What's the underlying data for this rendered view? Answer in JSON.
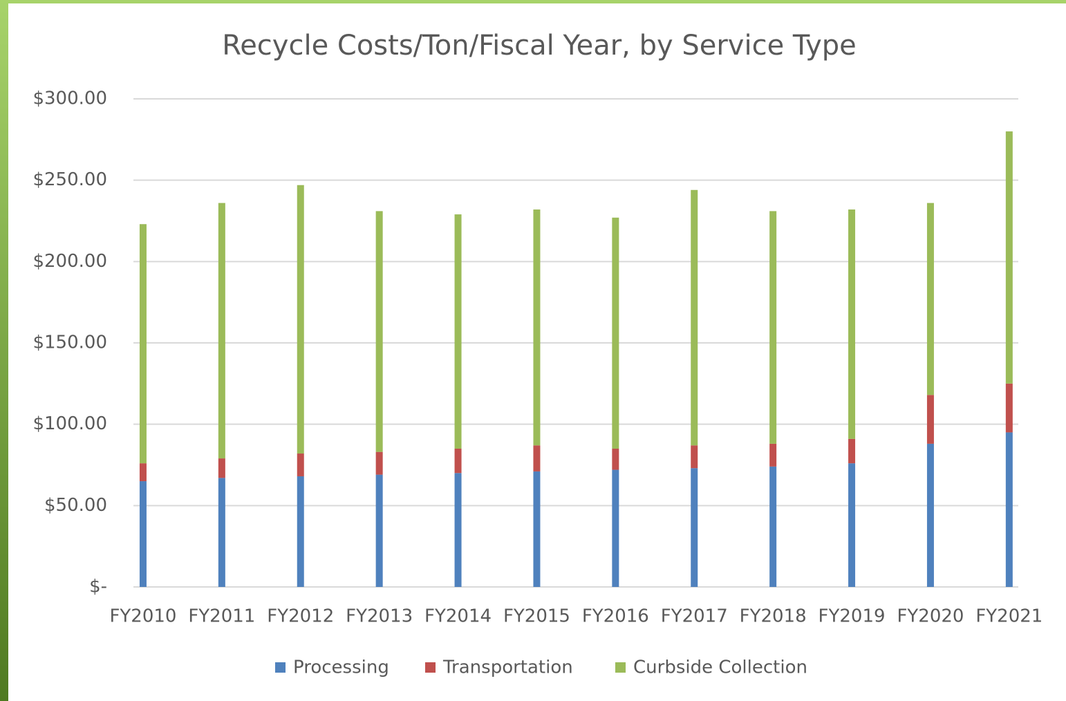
{
  "chart_data": {
    "type": "stacked_bar",
    "title": "Recycle Costs/Ton/Fiscal Year, by Service Type",
    "categories": [
      "FY2010",
      "FY2011",
      "FY2012",
      "FY2013",
      "FY2014",
      "FY2015",
      "FY2016",
      "FY2017",
      "FY2018",
      "FY2019",
      "FY2020",
      "FY2021"
    ],
    "series": [
      {
        "name": "Processing",
        "color": "#4f81bd",
        "values": [
          65,
          67,
          68,
          69,
          70,
          71,
          72,
          73,
          74,
          76,
          88,
          95
        ]
      },
      {
        "name": "Transportation",
        "color": "#c0504d",
        "values": [
          11,
          12,
          14,
          14,
          15,
          16,
          13,
          14,
          14,
          15,
          30,
          30
        ]
      },
      {
        "name": "Curbside Collection",
        "color": "#9bbb59",
        "values": [
          147,
          157,
          165,
          148,
          144,
          145,
          142,
          157,
          143,
          141,
          118,
          155
        ]
      }
    ],
    "ylim": [
      0,
      300
    ],
    "yticks": [
      {
        "value": 0,
        "label": "$-"
      },
      {
        "value": 50,
        "label": "$50.00"
      },
      {
        "value": 100,
        "label": "$100.00"
      },
      {
        "value": 150,
        "label": "$150.00"
      },
      {
        "value": 200,
        "label": "$200.00"
      },
      {
        "value": 250,
        "label": "$250.00"
      },
      {
        "value": 300,
        "label": "$300.00"
      }
    ],
    "grid": true,
    "legend": "bottom"
  }
}
